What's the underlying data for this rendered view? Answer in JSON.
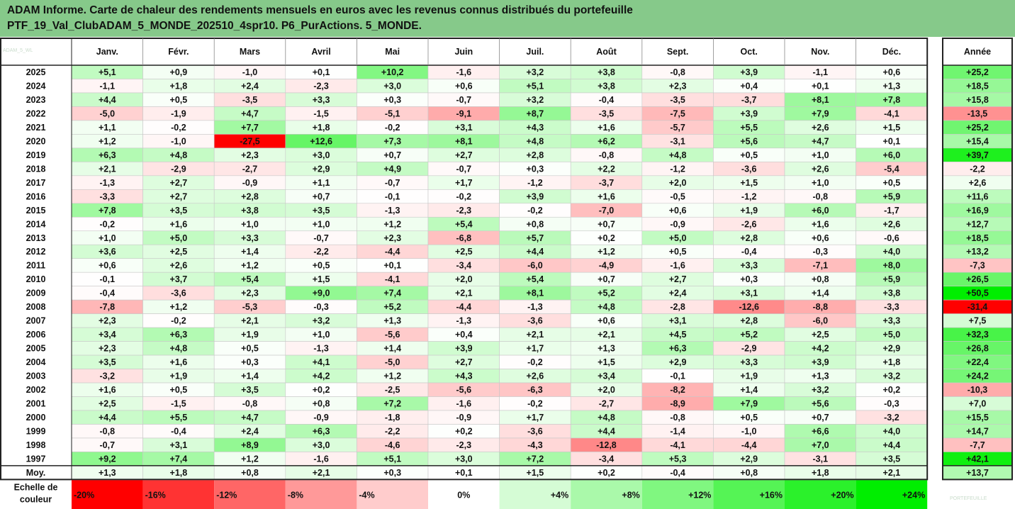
{
  "title": {
    "line1": "ADAM Informe. Carte de chaleur des rendements mensuels en euros avec les revenus connus distribués du portefeuille",
    "line2": "PTF_19_Val_ClubADAM_5_MONDE_202510_4spr10. P6_PurActions. 5_MONDE."
  },
  "watermark": "ADAM_5_WL",
  "logo_text": "PORTEFEUILLE",
  "chart_data": {
    "type": "heatmap",
    "columns": [
      "Janv.",
      "Févr.",
      "Mars",
      "Avril",
      "Mai",
      "Juin",
      "Juil.",
      "Août",
      "Sept.",
      "Oct.",
      "Nov.",
      "Déc."
    ],
    "year_column_label": "Année",
    "rows": [
      {
        "year": "2025",
        "values": [
          5.1,
          0.9,
          -1.0,
          0.1,
          10.2,
          -1.6,
          3.2,
          3.8,
          -0.8,
          3.9,
          -1.1,
          0.6
        ],
        "annual": 25.2
      },
      {
        "year": "2024",
        "values": [
          -1.1,
          1.8,
          2.4,
          -2.3,
          3.0,
          0.6,
          5.1,
          3.8,
          2.3,
          0.4,
          0.1,
          1.3
        ],
        "annual": 18.5
      },
      {
        "year": "2023",
        "values": [
          4.4,
          0.5,
          -3.5,
          3.3,
          0.3,
          -0.7,
          3.2,
          -0.4,
          -3.5,
          -3.7,
          8.1,
          7.8
        ],
        "annual": 15.8
      },
      {
        "year": "2022",
        "values": [
          -5.0,
          -1.9,
          4.7,
          -1.5,
          -5.1,
          -9.1,
          8.7,
          -3.5,
          -7.5,
          3.9,
          7.9,
          -4.1
        ],
        "annual": -13.5
      },
      {
        "year": "2021",
        "values": [
          1.1,
          -0.2,
          7.7,
          1.8,
          -0.2,
          3.1,
          4.3,
          1.6,
          -5.7,
          5.5,
          2.6,
          1.5
        ],
        "annual": 25.2
      },
      {
        "year": "2020",
        "values": [
          1.2,
          -1.0,
          -27.5,
          12.6,
          7.3,
          8.1,
          4.8,
          6.2,
          -3.1,
          5.6,
          4.7,
          0.1
        ],
        "annual": 15.4
      },
      {
        "year": "2019",
        "values": [
          6.3,
          4.8,
          2.3,
          3.0,
          0.7,
          2.7,
          2.8,
          -0.8,
          4.8,
          0.5,
          1.0,
          6.0
        ],
        "annual": 39.7
      },
      {
        "year": "2018",
        "values": [
          2.1,
          -2.9,
          -2.7,
          2.9,
          4.9,
          -0.7,
          0.3,
          2.2,
          -1.2,
          -3.6,
          2.6,
          -5.4
        ],
        "annual": -2.2
      },
      {
        "year": "2017",
        "values": [
          -1.3,
          2.7,
          -0.9,
          1.1,
          -0.7,
          1.7,
          -1.2,
          -3.7,
          2.0,
          1.5,
          1.0,
          0.5
        ],
        "annual": 2.6
      },
      {
        "year": "2016",
        "values": [
          -3.3,
          2.7,
          2.8,
          0.7,
          -0.1,
          -0.2,
          3.9,
          1.6,
          -0.5,
          -1.2,
          -0.8,
          5.9
        ],
        "annual": 11.6
      },
      {
        "year": "2015",
        "values": [
          7.8,
          3.5,
          3.8,
          3.5,
          -1.3,
          -2.3,
          -0.2,
          -7.0,
          0.6,
          1.9,
          6.0,
          -1.7
        ],
        "annual": 16.9
      },
      {
        "year": "2014",
        "values": [
          -0.2,
          1.6,
          1.0,
          1.0,
          1.2,
          5.4,
          0.8,
          0.7,
          -0.9,
          -2.6,
          1.6,
          2.6
        ],
        "annual": 12.7
      },
      {
        "year": "2013",
        "values": [
          1.0,
          5.0,
          3.3,
          -0.7,
          2.3,
          -6.8,
          5.7,
          0.2,
          5.0,
          2.8,
          0.6,
          -0.6
        ],
        "annual": 18.5
      },
      {
        "year": "2012",
        "values": [
          3.6,
          2.5,
          1.4,
          -2.2,
          -4.4,
          2.5,
          4.4,
          1.2,
          0.5,
          -0.4,
          -0.3,
          4.0
        ],
        "annual": 13.2
      },
      {
        "year": "2011",
        "values": [
          0.6,
          2.6,
          1.2,
          0.5,
          0.1,
          -3.4,
          -6.0,
          -4.9,
          -1.6,
          3.3,
          -7.1,
          8.0
        ],
        "annual": -7.3
      },
      {
        "year": "2010",
        "values": [
          -0.1,
          3.7,
          5.4,
          1.5,
          -4.1,
          2.0,
          5.4,
          0.7,
          2.7,
          0.3,
          0.8,
          5.9
        ],
        "annual": 26.5
      },
      {
        "year": "2009",
        "values": [
          -0.4,
          -3.6,
          2.3,
          9.0,
          7.4,
          2.1,
          8.1,
          5.2,
          2.4,
          3.1,
          1.4,
          3.8
        ],
        "annual": 50.5
      },
      {
        "year": "2008",
        "values": [
          -7.8,
          1.2,
          -5.3,
          -0.3,
          5.2,
          -4.4,
          -1.3,
          4.8,
          -2.8,
          -12.6,
          -8.8,
          -3.3
        ],
        "annual": -31.4
      },
      {
        "year": "2007",
        "values": [
          2.3,
          -0.2,
          2.1,
          3.2,
          1.3,
          -1.3,
          -3.6,
          0.6,
          3.1,
          2.8,
          -6.0,
          3.3
        ],
        "annual": 7.5
      },
      {
        "year": "2006",
        "values": [
          3.4,
          6.3,
          1.9,
          1.0,
          -5.6,
          0.4,
          2.1,
          2.1,
          4.5,
          5.2,
          2.5,
          5.0
        ],
        "annual": 32.3
      },
      {
        "year": "2005",
        "values": [
          2.3,
          4.8,
          0.5,
          -1.3,
          1.4,
          3.9,
          1.7,
          1.3,
          6.3,
          -2.9,
          4.2,
          2.9
        ],
        "annual": 26.8
      },
      {
        "year": "2004",
        "values": [
          3.5,
          1.6,
          0.3,
          4.1,
          -5.0,
          2.7,
          -0.2,
          1.5,
          2.9,
          3.3,
          3.9,
          1.8
        ],
        "annual": 22.4
      },
      {
        "year": "2003",
        "values": [
          -3.2,
          1.9,
          1.4,
          4.2,
          1.2,
          4.3,
          2.6,
          3.4,
          -0.1,
          1.9,
          1.3,
          3.2
        ],
        "annual": 24.2
      },
      {
        "year": "2002",
        "values": [
          1.6,
          0.5,
          3.5,
          0.2,
          -2.5,
          -5.6,
          -6.3,
          2.0,
          -8.2,
          1.4,
          3.2,
          0.2
        ],
        "annual": -10.3
      },
      {
        "year": "2001",
        "values": [
          2.5,
          -1.5,
          -0.8,
          0.8,
          7.2,
          -1.6,
          -0.2,
          -2.7,
          -8.9,
          7.9,
          5.6,
          -0.3
        ],
        "annual": 7.0
      },
      {
        "year": "2000",
        "values": [
          4.4,
          5.5,
          4.7,
          -0.9,
          -1.8,
          -0.9,
          1.7,
          4.8,
          -0.8,
          0.5,
          0.7,
          -3.2
        ],
        "annual": 15.5
      },
      {
        "year": "1999",
        "values": [
          -0.8,
          -0.4,
          2.4,
          6.3,
          -2.2,
          0.2,
          -3.6,
          4.4,
          -1.4,
          -1.0,
          6.6,
          4.0
        ],
        "annual": 14.7
      },
      {
        "year": "1998",
        "values": [
          -0.7,
          3.1,
          8.9,
          3.0,
          -4.6,
          -2.3,
          -4.3,
          -12.8,
          -4.1,
          -4.4,
          7.0,
          4.4
        ],
        "annual": -7.7
      },
      {
        "year": "1997",
        "values": [
          9.2,
          7.4,
          1.2,
          -1.6,
          5.1,
          3.0,
          7.2,
          -3.4,
          5.3,
          2.9,
          -3.1,
          3.5
        ],
        "annual": 42.1
      }
    ],
    "average": {
      "label": "Moy.",
      "values": [
        1.3,
        1.8,
        0.8,
        2.1,
        0.3,
        0.1,
        1.5,
        0.2,
        -0.4,
        0.8,
        1.8,
        2.1
      ],
      "annual": 13.7
    },
    "scale": {
      "label_line1": "Echelle de",
      "label_line2": "couleur",
      "steps": [
        {
          "label": "-20%",
          "value": -20
        },
        {
          "label": "-16%",
          "value": -16
        },
        {
          "label": "-12%",
          "value": -12
        },
        {
          "label": "-8%",
          "value": -8
        },
        {
          "label": "-4%",
          "value": -4
        },
        {
          "label": "0%",
          "value": 0
        },
        {
          "label": "+4%",
          "value": 4
        },
        {
          "label": "+8%",
          "value": 8
        },
        {
          "label": "+12%",
          "value": 12
        },
        {
          "label": "+16%",
          "value": 16
        },
        {
          "label": "+20%",
          "value": 20
        },
        {
          "label": "+24%",
          "value": 24
        }
      ]
    },
    "colors": {
      "negative": "#ff0000",
      "positive": "#00ee00",
      "neutral": "#ffffff",
      "header_bg": "#86c98a"
    }
  }
}
